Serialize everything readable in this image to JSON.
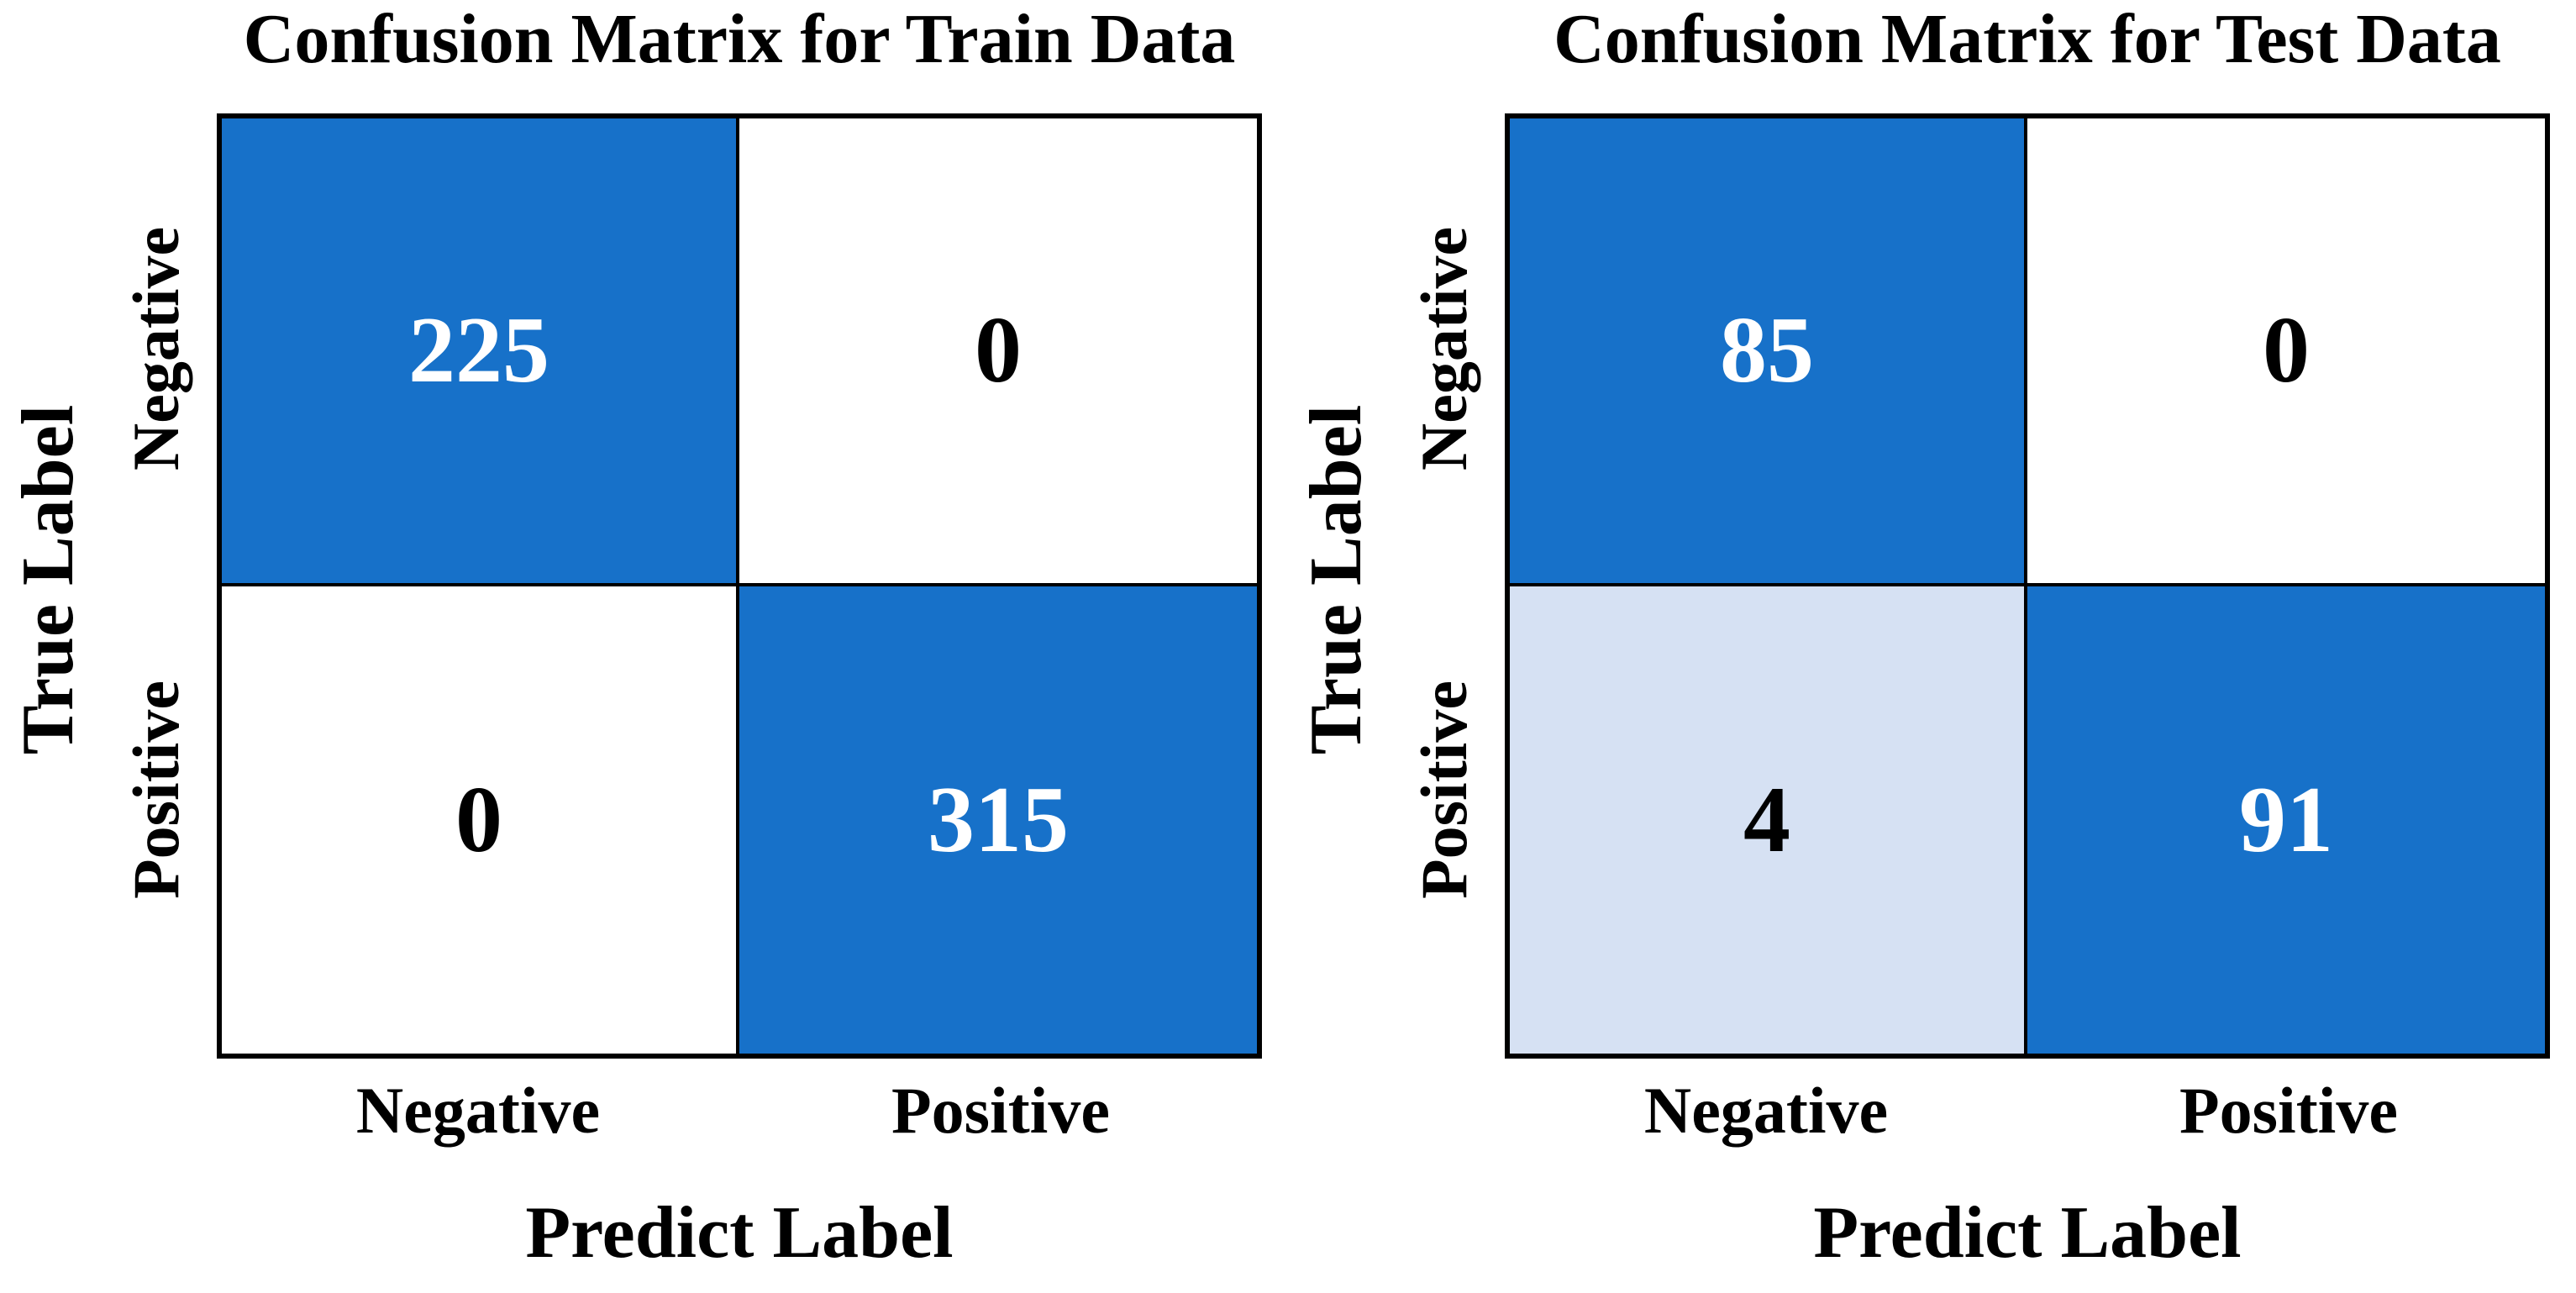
{
  "figure": {
    "colors": {
      "filled": "#1771C9",
      "light": "#D6E1F3",
      "empty": "#FFFFFF",
      "border": "#000000",
      "number_on_filled": "#FFFFFF",
      "number_on_empty": "#000000"
    },
    "cell_fills": [
      [
        [
          "filled",
          "empty"
        ],
        [
          "empty",
          "filled"
        ]
      ],
      [
        [
          "filled",
          "empty"
        ],
        [
          "light",
          "filled"
        ]
      ]
    ]
  },
  "chart_data": [
    {
      "type": "heatmap",
      "title": "Confusion Matrix for Train Data",
      "xlabel": "Predict Label",
      "ylabel": "True Label",
      "x_categories": [
        "Negative",
        "Positive"
      ],
      "y_categories": [
        "Negative",
        "Positive"
      ],
      "values": [
        [
          225,
          0
        ],
        [
          0,
          315
        ]
      ],
      "legend": "none",
      "grid": false
    },
    {
      "type": "heatmap",
      "title": "Confusion Matrix for Test Data",
      "xlabel": "Predict Label",
      "ylabel": "True Label",
      "x_categories": [
        "Negative",
        "Positive"
      ],
      "y_categories": [
        "Negative",
        "Positive"
      ],
      "values": [
        [
          85,
          0
        ],
        [
          4,
          91
        ]
      ],
      "legend": "none",
      "grid": false
    }
  ]
}
